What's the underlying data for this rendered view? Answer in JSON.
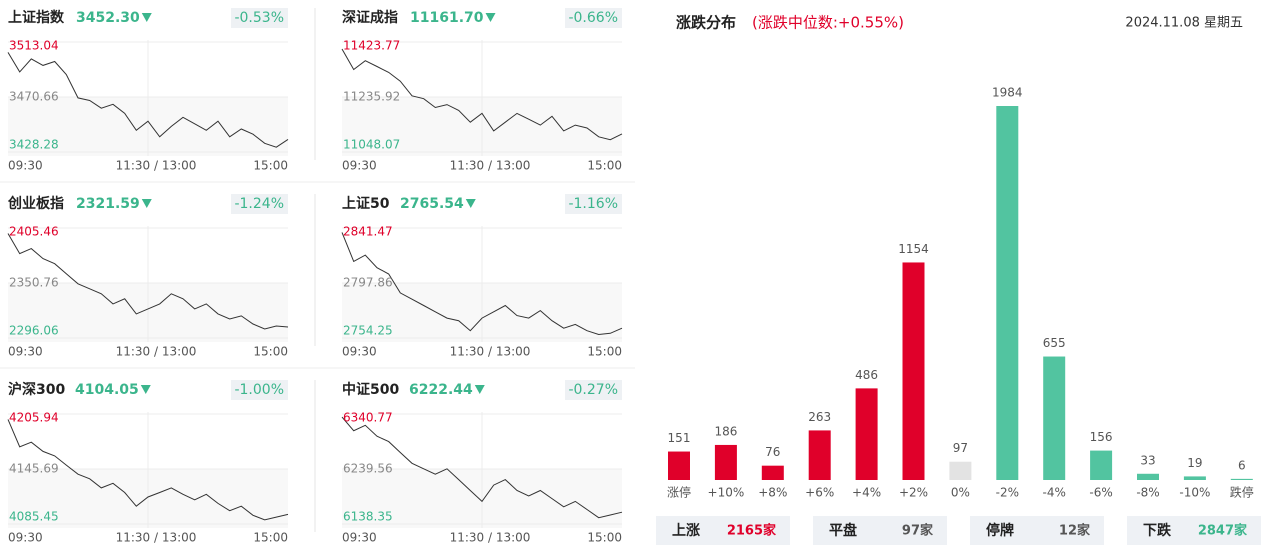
{
  "indices": [
    {
      "name": "上证指数",
      "price": "3452.30",
      "change": "-0.53%",
      "high": 3513.04,
      "mid": 3470.66,
      "low": 3428.28,
      "times": [
        "09:30",
        "11:30 / 13:00",
        "15:00"
      ],
      "values": [
        3505,
        3490,
        3500,
        3495,
        3498,
        3488,
        3470,
        3468,
        3462,
        3465,
        3458,
        3445,
        3452,
        3440,
        3448,
        3455,
        3450,
        3445,
        3452,
        3440,
        3446,
        3442,
        3435,
        3432,
        3438
      ]
    },
    {
      "name": "深证成指",
      "price": "11161.70",
      "change": "-0.66%",
      "high": 11423.77,
      "mid": 11235.92,
      "low": 11048.07,
      "times": [
        "09:30",
        "11:30 / 13:00",
        "15:00"
      ],
      "values": [
        11400,
        11330,
        11360,
        11340,
        11320,
        11290,
        11240,
        11230,
        11200,
        11210,
        11190,
        11150,
        11180,
        11120,
        11150,
        11180,
        11160,
        11140,
        11170,
        11120,
        11140,
        11130,
        11100,
        11090,
        11110
      ]
    },
    {
      "name": "创业板指",
      "price": "2321.59",
      "change": "-1.24%",
      "high": 2405.46,
      "mid": 2350.76,
      "low": 2296.06,
      "times": [
        "09:30",
        "11:30 / 13:00",
        "15:00"
      ],
      "values": [
        2400,
        2380,
        2385,
        2375,
        2370,
        2360,
        2350,
        2345,
        2340,
        2330,
        2335,
        2320,
        2325,
        2330,
        2340,
        2335,
        2325,
        2330,
        2320,
        2315,
        2318,
        2310,
        2305,
        2308,
        2307
      ]
    },
    {
      "name": "上证50",
      "price": "2765.54",
      "change": "-1.16%",
      "high": 2841.47,
      "mid": 2797.86,
      "low": 2754.25,
      "times": [
        "09:30",
        "11:30 / 13:00",
        "15:00"
      ],
      "values": [
        2838,
        2815,
        2820,
        2810,
        2805,
        2790,
        2785,
        2780,
        2775,
        2770,
        2768,
        2760,
        2770,
        2775,
        2780,
        2772,
        2770,
        2776,
        2768,
        2762,
        2765,
        2760,
        2757,
        2758,
        2762
      ]
    },
    {
      "name": "沪深300",
      "price": "4104.05",
      "change": "-1.00%",
      "high": 4205.94,
      "mid": 4145.69,
      "low": 4085.45,
      "times": [
        "09:30",
        "11:30 / 13:00",
        "15:00"
      ],
      "values": [
        4200,
        4170,
        4175,
        4165,
        4160,
        4150,
        4140,
        4135,
        4125,
        4130,
        4120,
        4105,
        4115,
        4120,
        4125,
        4118,
        4112,
        4118,
        4108,
        4100,
        4105,
        4095,
        4090,
        4093,
        4096
      ]
    },
    {
      "name": "中证500",
      "price": "6222.44",
      "change": "-0.27%",
      "high": 6340.77,
      "mid": 6239.56,
      "low": 6138.35,
      "times": [
        "09:30",
        "11:30 / 13:00",
        "15:00"
      ],
      "values": [
        6335,
        6310,
        6320,
        6300,
        6290,
        6270,
        6250,
        6240,
        6230,
        6240,
        6220,
        6200,
        6180,
        6210,
        6220,
        6200,
        6190,
        6200,
        6185,
        6170,
        6180,
        6165,
        6150,
        6155,
        6160
      ]
    }
  ],
  "distribution": {
    "title": "涨跌分布",
    "median_note": "(涨跌中位数:+0.55%)",
    "date": "2024.11.08 星期五",
    "categories": [
      "涨停",
      "+10%",
      "+8%",
      "+6%",
      "+4%",
      "+2%",
      "0%",
      "-2%",
      "-4%",
      "-6%",
      "-8%",
      "-10%",
      "跌停"
    ],
    "values": [
      151,
      186,
      76,
      263,
      486,
      1154,
      97,
      1984,
      655,
      156,
      33,
      19,
      6
    ],
    "colors": [
      "#e0002a",
      "#e0002a",
      "#e0002a",
      "#e0002a",
      "#e0002a",
      "#e0002a",
      "#e3e3e3",
      "#52c4a0",
      "#52c4a0",
      "#52c4a0",
      "#52c4a0",
      "#52c4a0",
      "#52c4a0"
    ],
    "summary": [
      {
        "label": "上涨",
        "value": "2165家",
        "color": "#e0002a"
      },
      {
        "label": "平盘",
        "value": "97家",
        "color": "#555555"
      },
      {
        "label": "停牌",
        "value": "12家",
        "color": "#555555"
      },
      {
        "label": "下跌",
        "value": "2847家",
        "color": "#3bb58c"
      }
    ]
  }
}
